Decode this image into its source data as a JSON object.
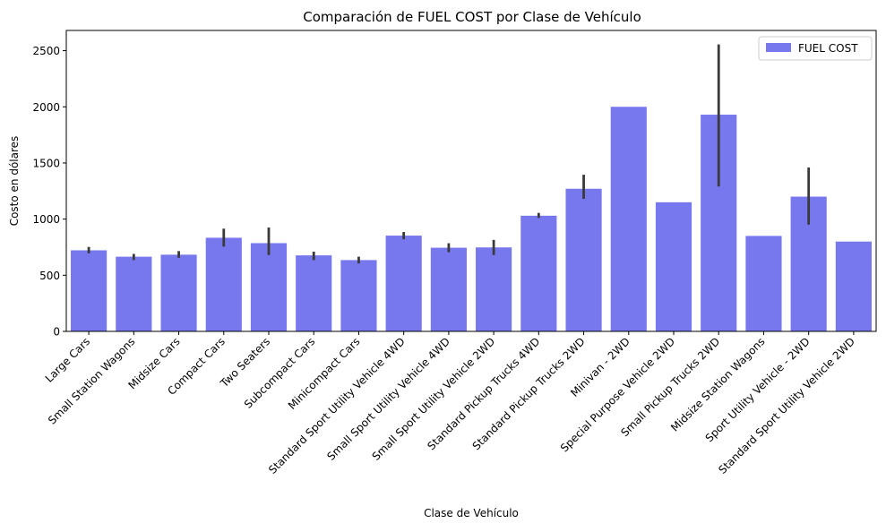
{
  "chart_data": {
    "type": "bar",
    "title": "Comparación de FUEL COST por Clase de Vehículo",
    "xlabel": "Clase de Vehículo",
    "ylabel": "Costo en dólares",
    "ylim": [
      0,
      2680
    ],
    "yticks": [
      0,
      500,
      1000,
      1500,
      2000,
      2500
    ],
    "bar_color": "#7878ee",
    "error_color": "#3a3a3a",
    "legend": {
      "label": "FUEL COST",
      "position": "top-right"
    },
    "categories": [
      "Large Cars",
      "Small Station Wagons",
      "Midsize Cars",
      "Compact Cars",
      "Two Seaters",
      "Subcompact Cars",
      "Minicompact Cars",
      "Standard Sport Utility Vehicle 4WD",
      "Small Sport Utility Vehicle 4WD",
      "Small Sport Utility Vehicle 2WD",
      "Standard Pickup Trucks 4WD",
      "Standard Pickup Trucks 2WD",
      "Minivan - 2WD",
      "Special Purpose Vehicle 2WD",
      "Small Pickup Trucks 2WD",
      "Midsize Station Wagons",
      "Sport Utility Vehicle - 2WD",
      "Standard Sport Utility Vehicle 2WD"
    ],
    "values": [
      722,
      665,
      683,
      834,
      786,
      677,
      635,
      853,
      745,
      748,
      1030,
      1270,
      2000,
      1150,
      1930,
      850,
      1200,
      800
    ],
    "error_low": [
      695,
      635,
      655,
      755,
      680,
      635,
      605,
      820,
      705,
      680,
      1010,
      1180,
      null,
      null,
      1290,
      null,
      950,
      null
    ],
    "error_high": [
      752,
      690,
      715,
      915,
      925,
      710,
      665,
      885,
      785,
      815,
      1055,
      1395,
      null,
      null,
      2555,
      null,
      1460,
      null
    ]
  }
}
